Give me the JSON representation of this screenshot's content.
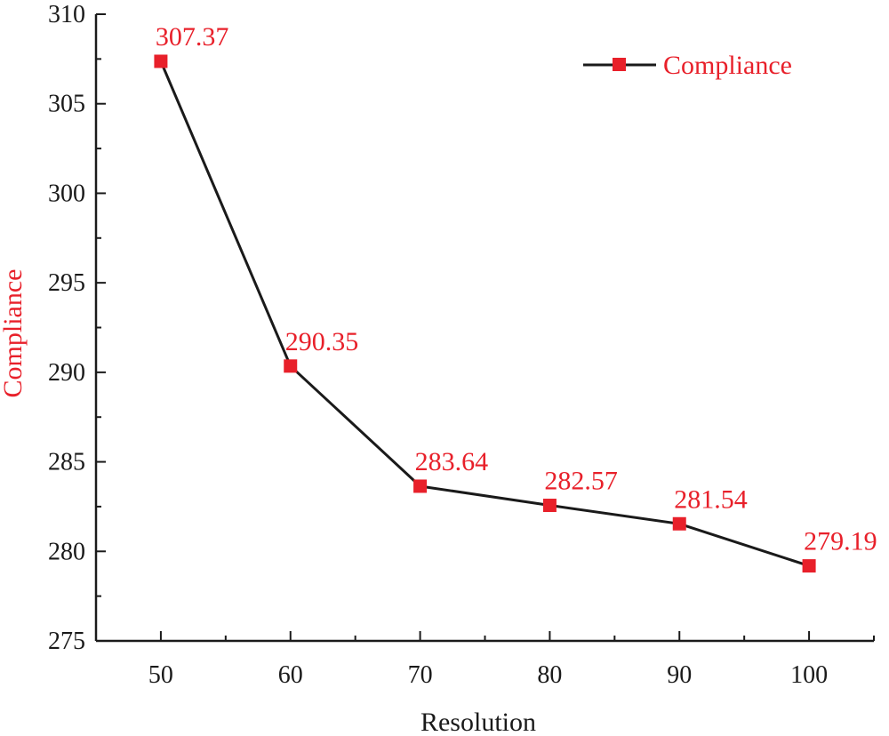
{
  "chart_data": {
    "type": "line",
    "title": "",
    "xlabel": "Resolution",
    "ylabel": "Compliance",
    "x": [
      50,
      60,
      70,
      80,
      90,
      100
    ],
    "xticks": [
      50,
      60,
      70,
      80,
      90,
      100
    ],
    "xlim": [
      45,
      105
    ],
    "yticks": [
      275,
      280,
      285,
      290,
      295,
      300,
      305,
      310
    ],
    "ylim": [
      275,
      310
    ],
    "grid": false,
    "legend": "top-right",
    "series": [
      {
        "name": "Compliance",
        "values": [
          307.37,
          290.35,
          283.64,
          282.57,
          281.54,
          279.19
        ],
        "labels": [
          "307.37",
          "290.35",
          "283.64",
          "282.57",
          "281.54",
          "279.19"
        ],
        "marker": "square",
        "line_color": "#1a1a1a",
        "marker_color": "#e8202a"
      }
    ]
  },
  "colors": {
    "accent": "#e8202a",
    "axis": "#1a1a1a"
  }
}
